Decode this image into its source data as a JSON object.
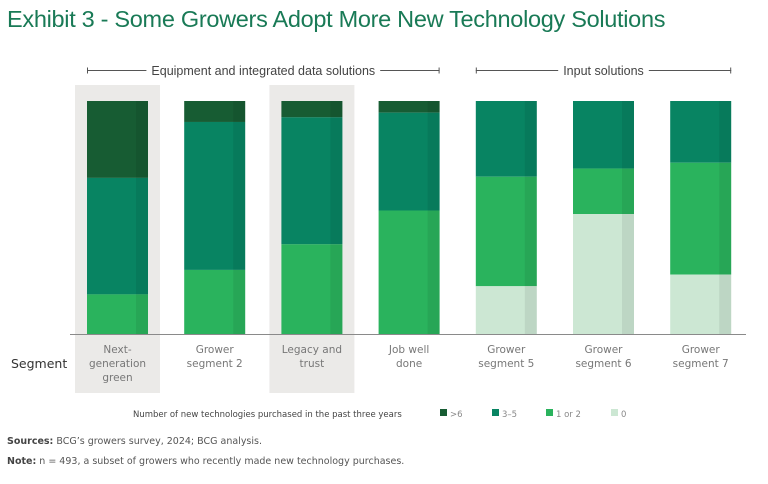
{
  "title": "Exhibit 3 - Some Growers Adopt More New Technology Solutions",
  "chart_data": {
    "type": "bar",
    "stacked": true,
    "normalized_percent": true,
    "title": "Exhibit 3 - Some Growers Adopt More New Technology Solutions",
    "xlabel": "Segment",
    "ylabel": "",
    "ylim": [
      0,
      100
    ],
    "groups": [
      {
        "label": "Equipment and integrated data solutions",
        "categories": [
          0,
          1,
          2,
          3
        ]
      },
      {
        "label": "Input solutions",
        "categories": [
          4,
          5,
          6
        ]
      }
    ],
    "categories": [
      "Next-\ngeneration\ngreen",
      "Grower\nsegment 2",
      "Legacy and\ntrust",
      "Job well\ndone",
      "Grower\nsegment 5",
      "Grower\nsegment 6",
      "Grower\nsegment 7"
    ],
    "highlighted_categories": [
      0,
      2
    ],
    "legend_title": "Number of new technologies purchased in the past three years",
    "legend_position": "bottom",
    "series": [
      {
        "name": ">6",
        "color": "#175c33",
        "values": [
          33,
          9,
          7,
          5,
          0,
          0,
          0
        ]
      },
      {
        "name": "3–5",
        "color": "#088462",
        "values": [
          50,
          63.5,
          54.5,
          42,
          32.5,
          29,
          26.5
        ]
      },
      {
        "name": "1 or 2",
        "color": "#2ab35d",
        "values": [
          17,
          27.5,
          38.5,
          53,
          47,
          19.5,
          48
        ]
      },
      {
        "name": "0",
        "color": "#cce7d3",
        "values": [
          0,
          0,
          0,
          0,
          20.5,
          51.5,
          25.5
        ]
      }
    ]
  },
  "footer": {
    "sources_label": "Sources:",
    "sources_text": " BCG’s growers survey, 2024; BCG analysis.",
    "note_label": "Note:",
    "note_text": " n = 493, a subset of growers who recently made new technology purchases."
  }
}
